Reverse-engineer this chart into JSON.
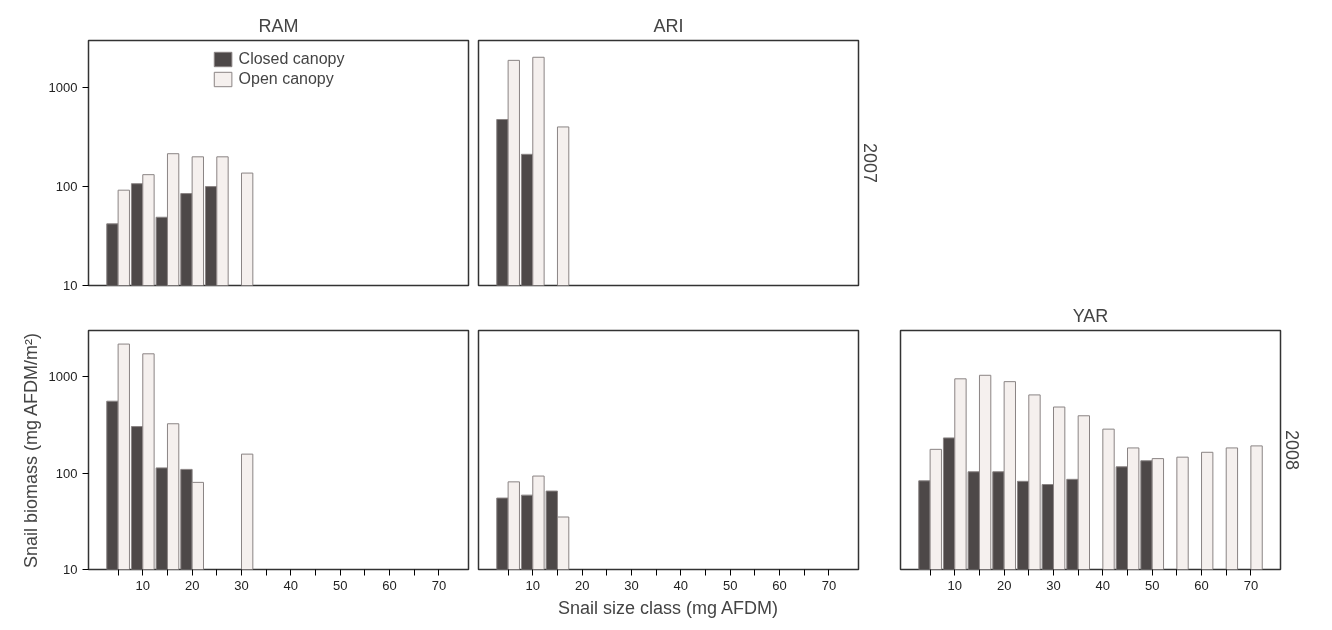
{
  "chart_data": [
    {
      "type": "bar",
      "title": "RAM",
      "x": [
        5,
        10,
        15,
        20,
        25,
        30
      ],
      "series": [
        {
          "name": "Closed canopy",
          "color": "#4d4848",
          "values": [
            42,
            107,
            49,
            85,
            100,
            null
          ]
        },
        {
          "name": "Open canopy",
          "color": "#f5f0ee",
          "values": [
            92,
            132,
            215,
            200,
            200,
            137
          ]
        }
      ],
      "xlim": [
        -1,
        76
      ],
      "ylim": [
        10,
        3000
      ],
      "yticks": [
        10,
        100,
        1000
      ],
      "log": true,
      "tick_labels": "y",
      "legend": "top",
      "grid": false
    },
    {
      "type": "bar",
      "title": "ARI",
      "x": [
        5,
        10,
        15
      ],
      "series": [
        {
          "color": "#4d4848",
          "values": [
            477,
            212,
            null
          ]
        },
        {
          "color": "#f5f0ee",
          "values": [
            1890,
            2030,
            401
          ]
        }
      ],
      "xlim": [
        -1,
        76
      ],
      "ylim": [
        10,
        3000
      ],
      "yticks": [
        10,
        100,
        1000
      ],
      "log": true,
      "tick_labels": false,
      "grid": false,
      "annotations": [
        "2007"
      ]
    },
    {
      "type": "bar",
      "ylabel": "Snail biomass (mg AFDM/m²)",
      "x": [
        5,
        10,
        15,
        20,
        25,
        30
      ],
      "series": [
        {
          "color": "#4d4848",
          "values": [
            555,
            303,
            113,
            109,
            null,
            null
          ]
        },
        {
          "color": "#f5f0ee",
          "values": [
            2170,
            1720,
            324,
            80,
            null,
            157
          ]
        }
      ],
      "xlim": [
        -1,
        76
      ],
      "xticks": [
        {
          "value": 5,
          "label": null
        },
        10,
        {
          "value": 15,
          "label": null
        },
        20,
        {
          "value": 25,
          "label": null
        },
        30,
        {
          "value": 35,
          "label": null
        },
        40,
        {
          "value": 45,
          "label": null
        },
        50,
        {
          "value": 55,
          "label": null
        },
        60,
        {
          "value": 65,
          "label": null
        },
        70
      ],
      "ylim": [
        10,
        3000
      ],
      "yticks": [
        10,
        100,
        1000
      ],
      "log": true,
      "grid": false
    },
    {
      "type": "bar",
      "xlabel": "Snail size class (mg AFDM)",
      "x": [
        5,
        10,
        15
      ],
      "series": [
        {
          "color": "#4d4848",
          "values": [
            55,
            59,
            65
          ]
        },
        {
          "color": "#f5f0ee",
          "values": [
            81,
            93,
            35
          ]
        }
      ],
      "xlim": [
        -1,
        76
      ],
      "xticks": [
        {
          "value": 5,
          "label": null
        },
        10,
        {
          "value": 15,
          "label": null
        },
        20,
        {
          "value": 25,
          "label": null
        },
        30,
        {
          "value": 35,
          "label": null
        },
        40,
        {
          "value": 45,
          "label": null
        },
        50,
        {
          "value": 55,
          "label": null
        },
        60,
        {
          "value": 65,
          "label": null
        },
        70
      ],
      "ylim": [
        10,
        3000
      ],
      "yticks": [
        10,
        100,
        1000
      ],
      "log": true,
      "tick_labels": "x",
      "grid": false
    },
    {
      "type": "bar",
      "title": "YAR",
      "x": [
        5,
        10,
        15,
        20,
        25,
        30,
        35,
        40,
        45,
        50,
        55,
        60,
        65,
        70
      ],
      "series": [
        {
          "color": "#4d4848",
          "values": [
            83,
            231,
            103,
            103,
            82,
            76,
            86,
            null,
            116,
            134,
            null,
            null,
            null,
            null
          ]
        },
        {
          "color": "#f5f0ee",
          "values": [
            176,
            947,
            1030,
            885,
            645,
            483,
            392,
            285,
            182,
            141,
            146,
            164,
            182,
            191
          ]
        }
      ],
      "xlim": [
        -1,
        76
      ],
      "xticks": [
        {
          "value": 5,
          "label": null
        },
        10,
        {
          "value": 15,
          "label": null
        },
        20,
        {
          "value": 25,
          "label": null
        },
        30,
        {
          "value": 35,
          "label": null
        },
        40,
        {
          "value": 45,
          "label": null
        },
        50,
        {
          "value": 55,
          "label": null
        },
        60,
        {
          "value": 65,
          "label": null
        },
        70
      ],
      "ylim": [
        10,
        3000
      ],
      "yticks": [
        10,
        100,
        1000
      ],
      "log": true,
      "tick_labels": "x",
      "grid": false,
      "annotations": [
        "2008"
      ]
    }
  ]
}
